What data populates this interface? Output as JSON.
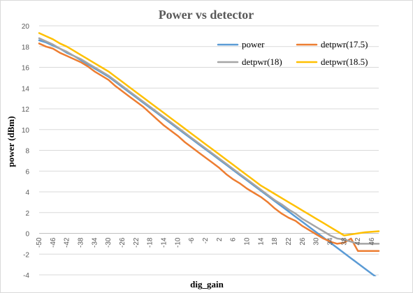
{
  "chart_data": {
    "type": "line",
    "title": "Power vs detector",
    "xlabel": "dig_gain",
    "ylabel": "power (dBm)",
    "ylim": [
      -4,
      20
    ],
    "yticks": [
      -4,
      -2,
      0,
      2,
      4,
      6,
      8,
      10,
      12,
      14,
      16,
      18,
      20
    ],
    "grid": true,
    "legend_position": "top-right",
    "x": [
      -50,
      -48,
      -46,
      -44,
      -42,
      -40,
      -38,
      -36,
      -34,
      -32,
      -30,
      -28,
      -26,
      -24,
      -22,
      -20,
      -18,
      -16,
      -14,
      -12,
      -10,
      -8,
      -6,
      -4,
      -2,
      0,
      2,
      4,
      6,
      8,
      10,
      12,
      14,
      16,
      18,
      20,
      22,
      24,
      26,
      28,
      30,
      32,
      34,
      36,
      38,
      40,
      42,
      44,
      46,
      48
    ],
    "xtick_labels": [
      "-50",
      "-46",
      "-42",
      "-38",
      "-34",
      "-30",
      "-26",
      "-22",
      "-18",
      "-14",
      "-10",
      "-6",
      "-2",
      "2",
      "6",
      "10",
      "14",
      "18",
      "22",
      "26",
      "30",
      "34",
      "38",
      "42",
      "46"
    ],
    "series": [
      {
        "name": "power",
        "color": "#5b9bd5",
        "values": [
          18.6,
          18.4,
          18.1,
          17.8,
          17.4,
          17.1,
          16.7,
          16.3,
          15.9,
          15.5,
          15.1,
          14.6,
          14.1,
          13.6,
          13.1,
          12.6,
          12.1,
          11.6,
          11.1,
          10.6,
          10.1,
          9.6,
          9.1,
          8.6,
          8.1,
          7.6,
          7.1,
          6.6,
          6.1,
          5.6,
          5.1,
          4.6,
          4.1,
          3.6,
          3.1,
          2.6,
          2.1,
          1.6,
          1.1,
          0.6,
          0.1,
          -0.4,
          -0.9,
          -1.4,
          -1.9,
          -2.4,
          -2.9,
          -3.4,
          -3.9,
          -4.4
        ]
      },
      {
        "name": "detpwr(17.5)",
        "color": "#ed7d31",
        "values": [
          18.3,
          18.0,
          17.8,
          17.4,
          17.1,
          16.8,
          16.5,
          16.1,
          15.6,
          15.2,
          14.8,
          14.2,
          13.7,
          13.2,
          12.7,
          12.2,
          11.6,
          11.0,
          10.4,
          9.9,
          9.4,
          8.8,
          8.3,
          7.8,
          7.3,
          6.8,
          6.3,
          5.7,
          5.2,
          4.8,
          4.3,
          3.9,
          3.5,
          3.0,
          2.4,
          1.9,
          1.5,
          1.2,
          0.7,
          0.3,
          -0.1,
          -0.5,
          -0.8,
          -1.0,
          -0.9,
          -0.5,
          -1.7,
          -1.7,
          -1.7,
          -1.7
        ]
      },
      {
        "name": "detpwr(18)",
        "color": "#a5a5a5",
        "values": [
          18.8,
          18.5,
          18.2,
          17.8,
          17.5,
          17.1,
          16.8,
          16.4,
          16.0,
          15.6,
          15.2,
          14.7,
          14.2,
          13.7,
          13.2,
          12.7,
          12.2,
          11.7,
          11.2,
          10.7,
          10.2,
          9.7,
          9.2,
          8.7,
          8.2,
          7.7,
          7.2,
          6.7,
          6.2,
          5.7,
          5.2,
          4.7,
          4.2,
          3.7,
          3.2,
          2.8,
          2.3,
          1.9,
          1.4,
          1.0,
          0.6,
          0.2,
          -0.2,
          -0.5,
          -0.6,
          -0.8,
          -1.0,
          -1.0,
          -1.0,
          -1.0
        ]
      },
      {
        "name": "detpwr(18.5)",
        "color": "#ffc000",
        "values": [
          19.3,
          19.0,
          18.7,
          18.3,
          18.0,
          17.6,
          17.2,
          16.8,
          16.4,
          16.0,
          15.6,
          15.1,
          14.6,
          14.1,
          13.6,
          13.1,
          12.6,
          12.1,
          11.6,
          11.1,
          10.6,
          10.1,
          9.6,
          9.1,
          8.6,
          8.1,
          7.6,
          7.1,
          6.6,
          6.1,
          5.6,
          5.1,
          4.6,
          4.2,
          3.8,
          3.4,
          3.0,
          2.6,
          2.2,
          1.8,
          1.4,
          1.0,
          0.6,
          0.2,
          -0.2,
          -0.1,
          0.0,
          0.1,
          0.15,
          0.2
        ]
      }
    ],
    "legend_rows": [
      [
        "power",
        "detpwr(17.5)"
      ],
      [
        "detpwr(18)",
        "detpwr(18.5)"
      ]
    ]
  }
}
